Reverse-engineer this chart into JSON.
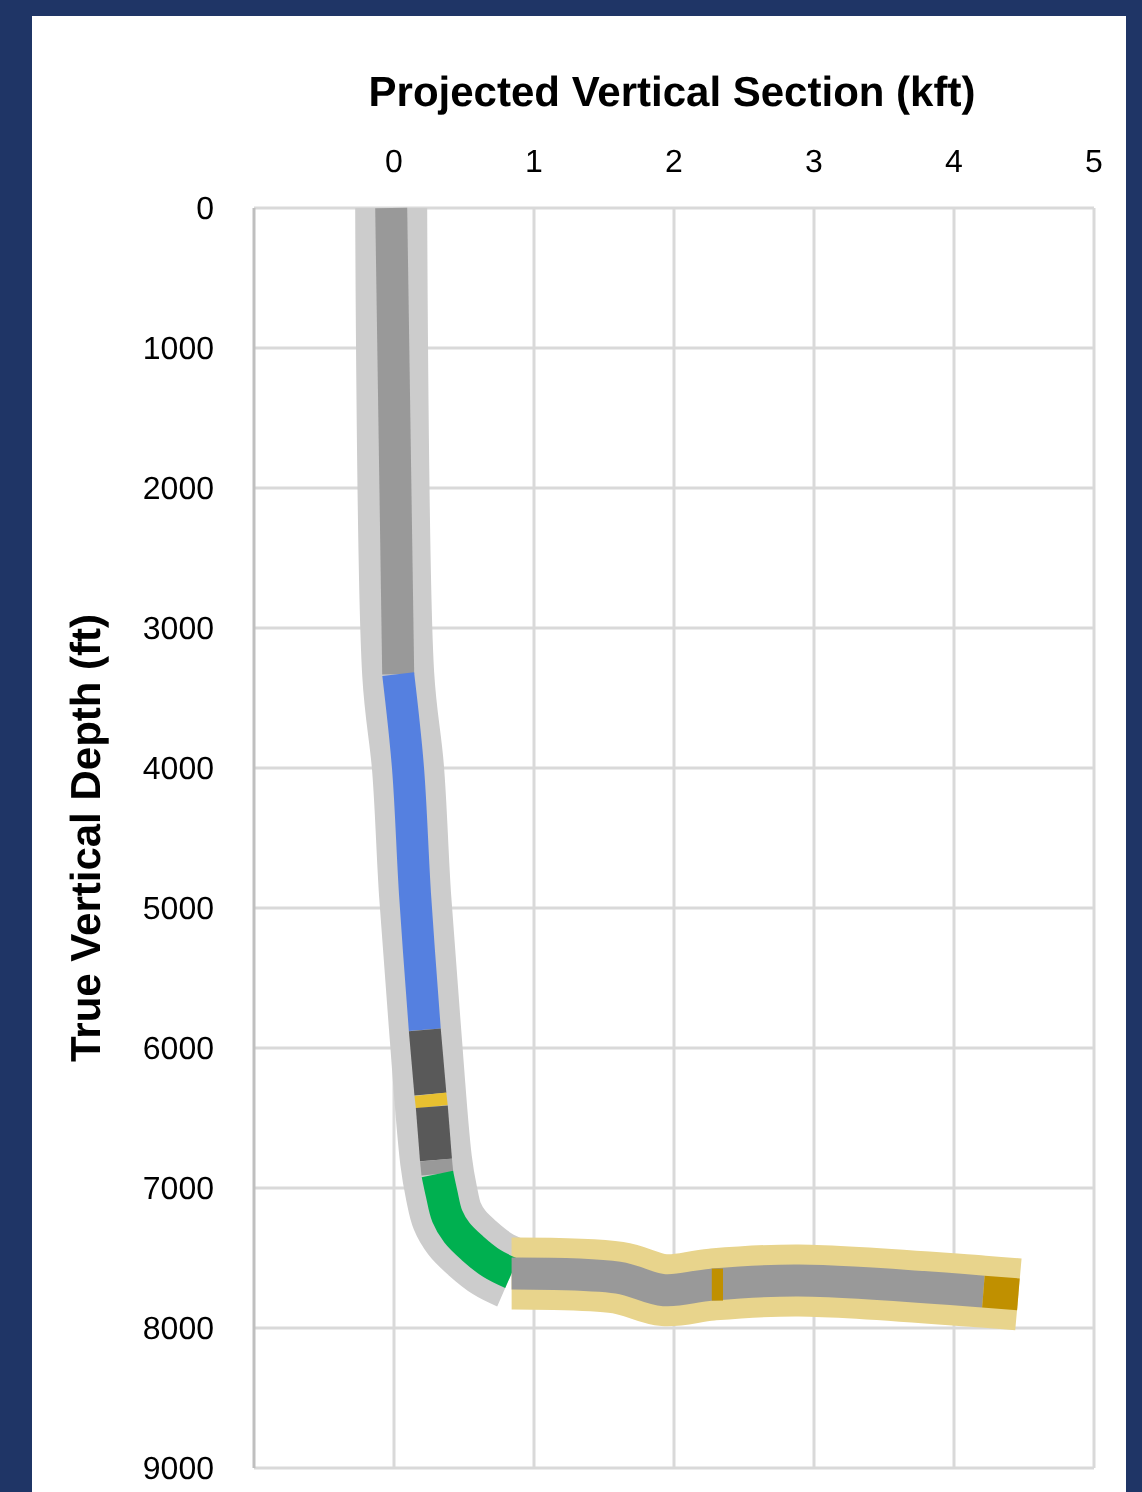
{
  "chart_data": {
    "type": "line",
    "xlabel": "Projected Vertical Section (kft)",
    "ylabel": "True Vertical Depth (ft)",
    "xlim": [
      -1,
      5
    ],
    "xticks": [
      0,
      1,
      2,
      3,
      4,
      5
    ],
    "ylim": [
      9000,
      0
    ],
    "yticks": [
      0,
      1000,
      2000,
      3000,
      4000,
      5000,
      6000,
      7000,
      8000,
      9000
    ],
    "grid": true,
    "marker": "none",
    "line_style": "solid",
    "series": [
      {
        "color": "#cccccc",
        "x": [
          -0.02,
          0.03,
          0.1,
          0.15,
          0.22,
          0.3,
          0.34,
          0.38,
          0.45,
          0.56,
          0.7,
          0.84
        ],
        "values": [
          0,
          3330,
          4000,
          4900,
          5840,
          6800,
          7040,
          7200,
          7320,
          7430,
          7540,
          7610
        ]
      },
      {
        "color": "#e8d48c",
        "x": [
          0.84,
          1.6,
          1.93,
          2.27,
          2.89,
          4.21,
          4.46
        ],
        "values": [
          7610,
          7640,
          7730,
          7690,
          7660,
          7740,
          7760
        ]
      },
      {
        "color": "#999999",
        "x": [
          -0.02,
          0.03
        ],
        "values": [
          0,
          3330
        ]
      },
      {
        "color": "#5580e0",
        "x": [
          0.03,
          0.1,
          0.15,
          0.22
        ],
        "values": [
          3330,
          4000,
          4900,
          5870
        ]
      },
      {
        "color": "#595959",
        "x": [
          0.22,
          0.26
        ],
        "values": [
          5870,
          6330
        ]
      },
      {
        "color": "#e8c030",
        "x": [
          0.26,
          0.27
        ],
        "values": [
          6330,
          6420
        ]
      },
      {
        "color": "#595959",
        "x": [
          0.27,
          0.3
        ],
        "values": [
          6420,
          6800
        ]
      },
      {
        "color": "#999999",
        "x": [
          0.3,
          0.31
        ],
        "values": [
          6800,
          6900
        ]
      },
      {
        "color": "#00b050",
        "x": [
          0.31,
          0.34,
          0.38,
          0.45,
          0.56,
          0.7,
          0.84
        ],
        "values": [
          6900,
          7040,
          7200,
          7320,
          7430,
          7540,
          7610
        ]
      },
      {
        "color": "#999999",
        "x": [
          0.84,
          1.6,
          1.93,
          2.27,
          2.89,
          4.21
        ],
        "values": [
          7610,
          7640,
          7730,
          7690,
          7660,
          7740
        ]
      },
      {
        "color": "#c09000",
        "x": [
          2.27,
          2.35
        ],
        "values": [
          7690,
          7690
        ]
      },
      {
        "color": "#c09000",
        "x": [
          4.21,
          4.46
        ],
        "values": [
          7740,
          7760
        ]
      }
    ]
  }
}
